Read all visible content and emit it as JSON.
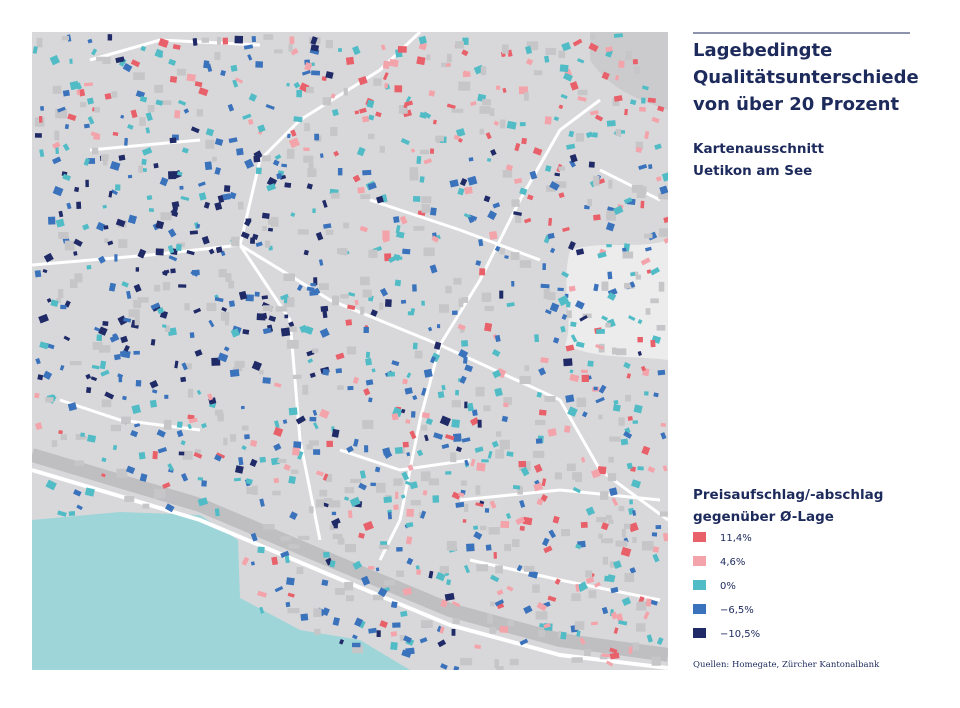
{
  "header": {
    "title": [
      "Lagebedingte",
      "Qualitätsunterschiede",
      "von über 20 Prozent"
    ],
    "subtitle": [
      "Kartenausschnitt",
      "Uetikon am See"
    ]
  },
  "legend": {
    "title": [
      "Preisaufschlag/-abschlag",
      "gegenüber Ø-Lage"
    ],
    "items": [
      {
        "label": "11,4%",
        "color": "#e8606a"
      },
      {
        "label": "4,6%",
        "color": "#f3a3aa"
      },
      {
        "label": "0%",
        "color": "#52bcc6"
      },
      {
        "label": "−6,5%",
        "color": "#3a72bb"
      },
      {
        "label": "−10,5%",
        "color": "#1f2a66"
      }
    ]
  },
  "source": "Quellen: Homegate, Zürcher Kantonalbank"
}
